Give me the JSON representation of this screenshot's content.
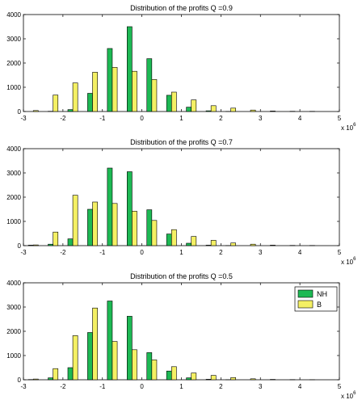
{
  "chart_data": [
    {
      "type": "bar",
      "title": "Distribution of the profits Q =0.9",
      "xlabel": "",
      "ylabel": "",
      "x_exponent": {
        "base": "x 10",
        "power": "6"
      },
      "xlim": [
        -3,
        5
      ],
      "ylim": [
        0,
        4000
      ],
      "x_ticks": [
        -3,
        -2,
        -1,
        0,
        1,
        2,
        3,
        4,
        5
      ],
      "y_ticks": [
        0,
        1000,
        2000,
        3000,
        4000
      ],
      "x_tick_labels": [
        "-3",
        "-2",
        "-1",
        "0",
        "1",
        "2",
        "3",
        "4",
        "5"
      ],
      "y_tick_labels": [
        "0",
        "1000",
        "2000",
        "3000",
        "4000"
      ],
      "x": [
        -2.75,
        -2.25,
        -1.75,
        -1.25,
        -0.75,
        -0.25,
        0.25,
        0.75,
        1.25,
        1.75,
        2.25,
        2.75,
        3.25,
        3.75,
        4.25
      ],
      "series": [
        {
          "color": "#1db954",
          "values": [
            0,
            10,
            80,
            750,
            2600,
            3500,
            2180,
            670,
            180,
            30,
            5,
            0,
            0,
            0,
            0
          ]
        },
        {
          "color": "#f4f064",
          "values": [
            40,
            680,
            1180,
            1620,
            1820,
            1660,
            1320,
            800,
            480,
            240,
            140,
            60,
            20,
            10,
            8
          ]
        }
      ],
      "legend": false,
      "grid": false
    },
    {
      "type": "bar",
      "title": "Distribution of the profits Q =0.7",
      "xlabel": "",
      "ylabel": "",
      "x_exponent": {
        "base": "x 10",
        "power": "6"
      },
      "xlim": [
        -3,
        5
      ],
      "ylim": [
        0,
        4000
      ],
      "x_ticks": [
        -3,
        -2,
        -1,
        0,
        1,
        2,
        3,
        4,
        5
      ],
      "y_ticks": [
        0,
        1000,
        2000,
        3000,
        4000
      ],
      "x_tick_labels": [
        "-3",
        "-2",
        "-1",
        "0",
        "1",
        "2",
        "3",
        "4",
        "5"
      ],
      "y_tick_labels": [
        "0",
        "1000",
        "2000",
        "3000",
        "4000"
      ],
      "x": [
        -2.75,
        -2.25,
        -1.75,
        -1.25,
        -0.75,
        -0.25,
        0.25,
        0.75,
        1.25,
        1.75,
        2.25,
        2.75,
        3.25,
        3.75,
        4.25
      ],
      "series": [
        {
          "color": "#1db954",
          "values": [
            20,
            60,
            280,
            1500,
            3200,
            3050,
            1480,
            480,
            100,
            20,
            5,
            0,
            0,
            0,
            0
          ]
        },
        {
          "color": "#f4f064",
          "values": [
            30,
            560,
            2080,
            1800,
            1740,
            1420,
            1040,
            660,
            380,
            220,
            110,
            60,
            20,
            10,
            8
          ]
        }
      ],
      "legend": false,
      "grid": false
    },
    {
      "type": "bar",
      "title": "Distribution of the profits Q =0.5",
      "xlabel": "",
      "ylabel": "",
      "x_exponent": {
        "base": "x 10",
        "power": "6"
      },
      "xlim": [
        -3,
        5
      ],
      "ylim": [
        0,
        4000
      ],
      "x_ticks": [
        -3,
        -2,
        -1,
        0,
        1,
        2,
        3,
        4,
        5
      ],
      "y_ticks": [
        0,
        1000,
        2000,
        3000,
        4000
      ],
      "x_tick_labels": [
        "-3",
        "-2",
        "-1",
        "0",
        "1",
        "2",
        "3",
        "4",
        "5"
      ],
      "y_tick_labels": [
        "0",
        "1000",
        "2000",
        "3000",
        "4000"
      ],
      "x": [
        -2.75,
        -2.25,
        -1.75,
        -1.25,
        -0.75,
        -0.25,
        0.25,
        0.75,
        1.25,
        1.75,
        2.25,
        2.75,
        3.25,
        3.75,
        4.25
      ],
      "series": [
        {
          "name": "NH",
          "color": "#1db954",
          "values": [
            10,
            80,
            500,
            1950,
            3250,
            2620,
            1120,
            360,
            80,
            20,
            5,
            0,
            0,
            0,
            0
          ]
        },
        {
          "name": "B",
          "color": "#f4f064",
          "values": [
            30,
            460,
            1820,
            2960,
            1580,
            1240,
            820,
            540,
            280,
            180,
            90,
            40,
            15,
            8,
            5
          ]
        }
      ],
      "legend": true,
      "legend_position": "top-right",
      "grid": false
    }
  ]
}
